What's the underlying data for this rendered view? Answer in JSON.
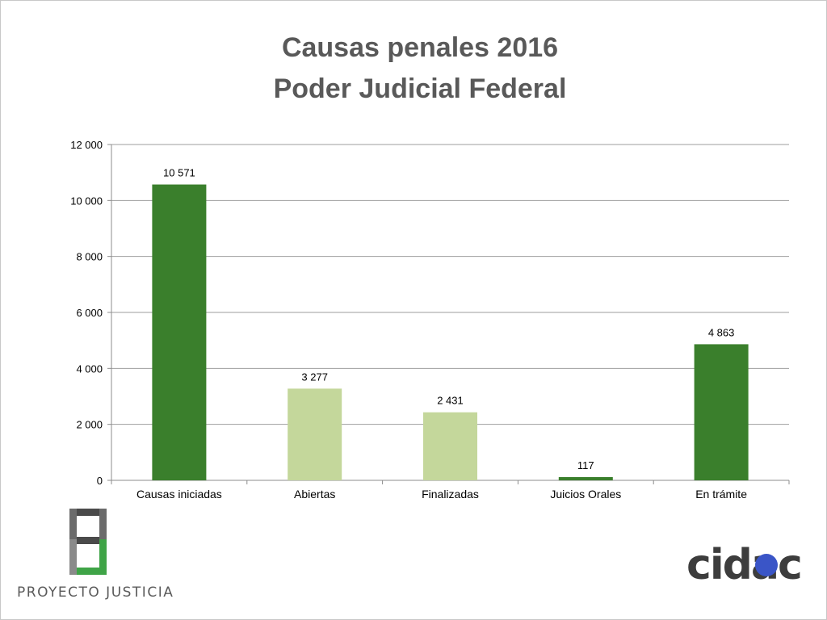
{
  "title_line1": "Causas penales 2016",
  "title_line2": "Poder Judicial Federal",
  "chart_data": {
    "type": "bar",
    "categories": [
      "Causas iniciadas",
      "Abiertas",
      "Finalizadas",
      "Juicios Orales",
      "En trámite"
    ],
    "values": [
      10571,
      3277,
      2431,
      117,
      4863
    ],
    "value_labels": [
      "10 571",
      "3 277",
      "2 431",
      "117",
      "4 863"
    ],
    "bar_colors": [
      "#3a7f2c",
      "#c4d79b",
      "#c4d79b",
      "#3a7f2c",
      "#3a7f2c"
    ],
    "ylim": [
      0,
      12000
    ],
    "yticks": [
      0,
      2000,
      4000,
      6000,
      8000,
      10000,
      12000
    ],
    "ytick_labels": [
      "0",
      "2 000",
      "4 000",
      "6 000",
      "8 000",
      "10 000",
      "12 000"
    ],
    "grid": true,
    "legend": "none"
  },
  "logos": {
    "left_text": "PROYECTO JUSTICIA",
    "right_text": "cidac"
  }
}
